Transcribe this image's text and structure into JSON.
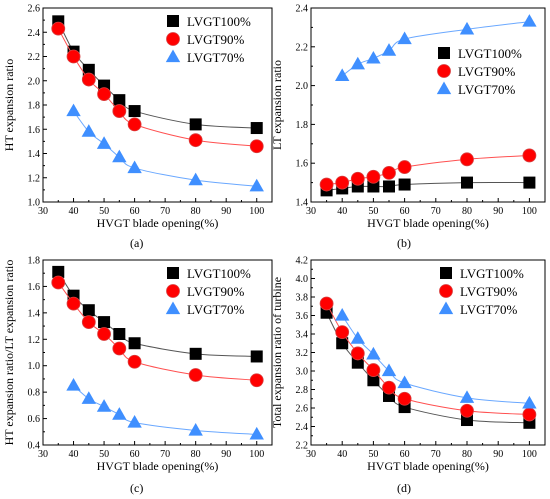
{
  "colors": {
    "black_series": "#000000",
    "red_series": "#ff0000",
    "blue_series": "#3f8fff",
    "axis": "#000000"
  },
  "chart_data": [
    {
      "type": "scatter",
      "caption": "(a)",
      "xlabel": "HVGT blade opening(%)",
      "ylabel": "HT expansion ratio",
      "xlim": [
        30,
        105
      ],
      "ylim": [
        1.0,
        2.6
      ],
      "xticks": [
        30,
        40,
        50,
        60,
        70,
        80,
        90,
        100
      ],
      "yticks": [
        1.0,
        1.2,
        1.4,
        1.6,
        1.8,
        2.0,
        2.2,
        2.4,
        2.6
      ],
      "ytick_decimals": 1,
      "legend_position": "top-right",
      "series": [
        {
          "name": "LVGT100%",
          "marker": "square",
          "color": "#000000",
          "x": [
            35,
            40,
            45,
            50,
            55,
            60,
            80,
            100
          ],
          "y": [
            2.49,
            2.24,
            2.09,
            1.96,
            1.84,
            1.75,
            1.64,
            1.61
          ]
        },
        {
          "name": "LVGT90%",
          "marker": "circle",
          "color": "#ff0000",
          "x": [
            35,
            40,
            45,
            50,
            55,
            60,
            80,
            100
          ],
          "y": [
            2.43,
            2.2,
            2.01,
            1.89,
            1.75,
            1.64,
            1.51,
            1.46
          ]
        },
        {
          "name": "LVGT70%",
          "marker": "triangle",
          "color": "#3f8fff",
          "x": [
            40,
            45,
            50,
            55,
            60,
            80,
            100
          ],
          "y": [
            1.75,
            1.58,
            1.48,
            1.37,
            1.28,
            1.18,
            1.13
          ]
        }
      ]
    },
    {
      "type": "scatter",
      "caption": "(b)",
      "xlabel": "HVGT blade opening(%)",
      "ylabel": "LT expansion ratio",
      "xlim": [
        30,
        105
      ],
      "ylim": [
        1.4,
        2.4
      ],
      "xticks": [
        30,
        40,
        50,
        60,
        70,
        80,
        90,
        100
      ],
      "yticks": [
        1.4,
        1.6,
        1.8,
        2.0,
        2.2,
        2.4
      ],
      "ytick_decimals": 1,
      "legend_position": "center-right",
      "series": [
        {
          "name": "LVGT100%",
          "marker": "square",
          "color": "#000000",
          "x": [
            35,
            40,
            45,
            50,
            55,
            60,
            80,
            100
          ],
          "y": [
            1.46,
            1.47,
            1.48,
            1.48,
            1.48,
            1.49,
            1.5,
            1.5
          ]
        },
        {
          "name": "LVGT90%",
          "marker": "circle",
          "color": "#ff0000",
          "x": [
            35,
            40,
            45,
            50,
            55,
            60,
            80,
            100
          ],
          "y": [
            1.49,
            1.5,
            1.52,
            1.53,
            1.55,
            1.58,
            1.62,
            1.64
          ]
        },
        {
          "name": "LVGT70%",
          "marker": "triangle",
          "color": "#3f8fff",
          "x": [
            40,
            45,
            50,
            55,
            60,
            80,
            100
          ],
          "y": [
            2.05,
            2.11,
            2.14,
            2.18,
            2.24,
            2.29,
            2.33
          ]
        }
      ]
    },
    {
      "type": "scatter",
      "caption": "(c)",
      "xlabel": "HVGT blade opening(%)",
      "ylabel": "HT expansion ratio/LT expansion ratio",
      "xlim": [
        30,
        105
      ],
      "ylim": [
        0.4,
        1.8
      ],
      "xticks": [
        30,
        40,
        50,
        60,
        70,
        80,
        90,
        100
      ],
      "yticks": [
        0.4,
        0.6,
        0.8,
        1.0,
        1.2,
        1.4,
        1.6,
        1.8
      ],
      "ytick_decimals": 1,
      "legend_position": "top-right",
      "series": [
        {
          "name": "LVGT100%",
          "marker": "square",
          "color": "#000000",
          "x": [
            35,
            40,
            45,
            50,
            55,
            60,
            80,
            100
          ],
          "y": [
            1.71,
            1.53,
            1.42,
            1.33,
            1.24,
            1.17,
            1.09,
            1.07
          ]
        },
        {
          "name": "LVGT90%",
          "marker": "circle",
          "color": "#ff0000",
          "x": [
            35,
            40,
            45,
            50,
            55,
            60,
            80,
            100
          ],
          "y": [
            1.63,
            1.47,
            1.33,
            1.24,
            1.13,
            1.03,
            0.93,
            0.89
          ]
        },
        {
          "name": "LVGT70%",
          "marker": "triangle",
          "color": "#3f8fff",
          "x": [
            40,
            45,
            50,
            55,
            60,
            80,
            100
          ],
          "y": [
            0.85,
            0.75,
            0.69,
            0.63,
            0.57,
            0.51,
            0.48
          ]
        }
      ]
    },
    {
      "type": "scatter",
      "caption": "(d)",
      "xlabel": "HVGT blade opening(%)",
      "ylabel": "Total expansion ratio of turbine",
      "xlim": [
        30,
        105
      ],
      "ylim": [
        2.2,
        4.2
      ],
      "xticks": [
        30,
        40,
        50,
        60,
        70,
        80,
        90,
        100
      ],
      "yticks": [
        2.2,
        2.4,
        2.6,
        2.8,
        3.0,
        3.2,
        3.4,
        3.6,
        3.8,
        4.0,
        4.2
      ],
      "ytick_decimals": 1,
      "legend_position": "top-right",
      "series": [
        {
          "name": "LVGT100%",
          "marker": "square",
          "color": "#000000",
          "x": [
            35,
            40,
            45,
            50,
            55,
            60,
            80,
            100
          ],
          "y": [
            3.63,
            3.3,
            3.09,
            2.9,
            2.73,
            2.61,
            2.47,
            2.44
          ]
        },
        {
          "name": "LVGT90%",
          "marker": "circle",
          "color": "#ff0000",
          "x": [
            35,
            40,
            45,
            50,
            55,
            60,
            80,
            100
          ],
          "y": [
            3.73,
            3.42,
            3.19,
            3.01,
            2.82,
            2.7,
            2.57,
            2.53
          ]
        },
        {
          "name": "LVGT70%",
          "marker": "triangle",
          "color": "#3f8fff",
          "x": [
            40,
            45,
            50,
            55,
            60,
            80,
            100
          ],
          "y": [
            3.6,
            3.35,
            3.18,
            3.0,
            2.87,
            2.71,
            2.65
          ]
        }
      ]
    }
  ]
}
